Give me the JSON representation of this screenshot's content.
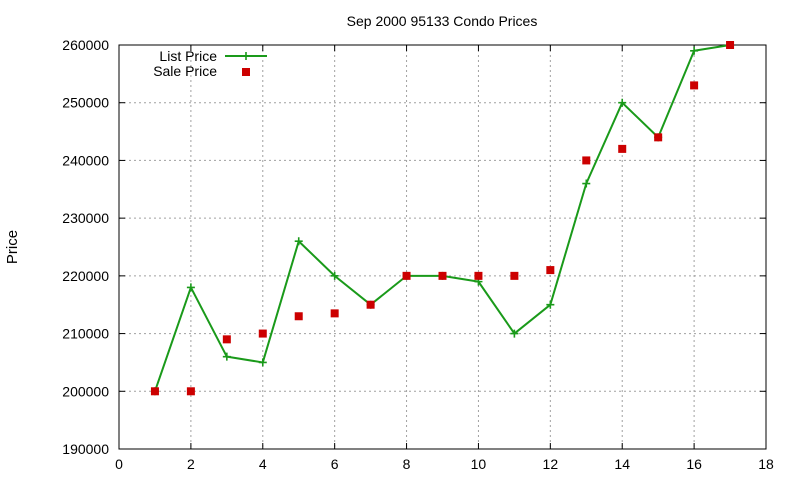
{
  "chart_data": {
    "type": "line",
    "title": "Sep 2000 95133 Condo Prices",
    "xlabel": "",
    "ylabel": "Price",
    "xlim": [
      0,
      18
    ],
    "ylim": [
      190000,
      260000
    ],
    "x_ticks": [
      0,
      2,
      4,
      6,
      8,
      10,
      12,
      14,
      16,
      18
    ],
    "y_ticks": [
      190000,
      200000,
      210000,
      220000,
      230000,
      240000,
      250000,
      260000
    ],
    "grid": true,
    "legend_position": "top-left",
    "series": [
      {
        "name": "List Price",
        "style": "line-with-plus-markers",
        "color": "#1a9a1a",
        "x": [
          1,
          2,
          3,
          4,
          5,
          6,
          7,
          8,
          9,
          10,
          11,
          12,
          13,
          14,
          15,
          16,
          17
        ],
        "values": [
          200000,
          218000,
          206000,
          205000,
          226000,
          220000,
          215000,
          220000,
          220000,
          219000,
          210000,
          215000,
          236000,
          250000,
          244000,
          259000,
          260000
        ]
      },
      {
        "name": "Sale Price",
        "style": "square-markers",
        "color": "#cc0000",
        "x": [
          1,
          2,
          3,
          4,
          5,
          6,
          7,
          8,
          9,
          10,
          11,
          12,
          13,
          14,
          15,
          16,
          17
        ],
        "values": [
          200000,
          200000,
          209000,
          210000,
          213000,
          213500,
          215000,
          220000,
          220000,
          220000,
          220000,
          221000,
          240000,
          242000,
          244000,
          253000,
          260000
        ]
      }
    ]
  }
}
